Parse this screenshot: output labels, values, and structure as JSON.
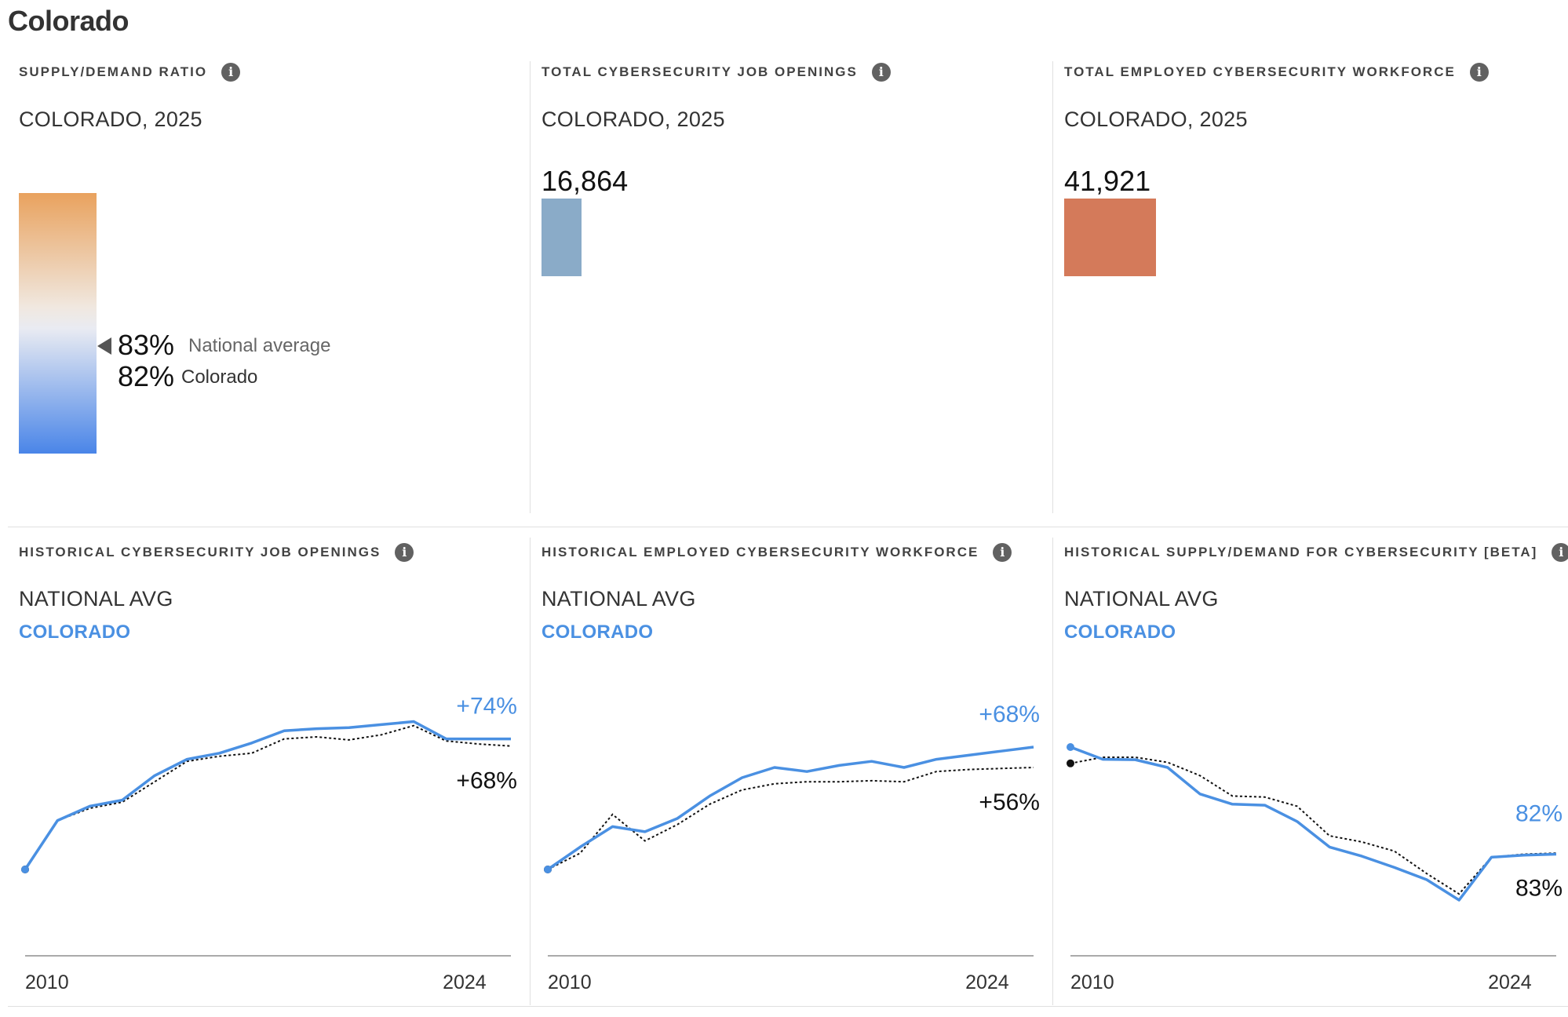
{
  "page": {
    "title": "Colorado"
  },
  "top": {
    "ratio": {
      "title": "SUPPLY/DEMAND RATIO",
      "subtitle": "COLORADO, 2025",
      "national_value": "83%",
      "national_label": "National average",
      "state_value": "82%",
      "state_label": "Colorado",
      "gradient_colors": [
        "#e9a25e",
        "#eeeeee",
        "#4a85e8"
      ]
    },
    "openings": {
      "title": "TOTAL CYBERSECURITY JOB OPENINGS",
      "subtitle": "COLORADO, 2025",
      "value": "16,864",
      "bar_color": "#8aabc8"
    },
    "workforce": {
      "title": "TOTAL EMPLOYED CYBERSECURITY WORKFORCE",
      "subtitle": "COLORADO, 2025",
      "value": "41,921",
      "bar_color": "#d47a5a"
    }
  },
  "bottom": {
    "legend_national": "NATIONAL AVG",
    "legend_state": "COLORADO",
    "colors": {
      "state": "#4a90e2",
      "national": "#111111"
    }
  },
  "chart_data": [
    {
      "type": "line",
      "title": "HISTORICAL CYBERSECURITY JOB OPENINGS",
      "x_tick_labels": [
        "2010",
        "2024"
      ],
      "x": [
        2010,
        2011,
        2012,
        2013,
        2014,
        2015,
        2016,
        2017,
        2018,
        2019,
        2020,
        2021,
        2022,
        2023,
        2024,
        2025
      ],
      "ylim": [
        0,
        80
      ],
      "series": [
        {
          "name": "COLORADO",
          "style": "solid",
          "end_label": "+74%",
          "values": [
            0,
            24,
            31,
            34,
            46,
            54,
            57,
            62,
            68,
            69,
            69.5,
            71,
            72.5,
            64,
            64,
            64
          ]
        },
        {
          "name": "NATIONAL AVG",
          "style": "dotted",
          "end_label": "+68%",
          "values": [
            0,
            24,
            30,
            33,
            43,
            53,
            55.5,
            57,
            64,
            65,
            63.5,
            66,
            70.5,
            63,
            61.5,
            60.5
          ]
        }
      ]
    },
    {
      "type": "line",
      "title": "HISTORICAL EMPLOYED CYBERSECURITY WORKFORCE",
      "x_tick_labels": [
        "2010",
        "2024"
      ],
      "x": [
        2010,
        2011,
        2012,
        2013,
        2014,
        2015,
        2016,
        2017,
        2018,
        2019,
        2020,
        2021,
        2022,
        2023,
        2024,
        2025
      ],
      "ylim": [
        0,
        80
      ],
      "series": [
        {
          "name": "COLORADO",
          "style": "solid",
          "end_label": "+68%",
          "values": [
            0,
            11,
            21,
            18.5,
            25,
            36,
            45,
            50,
            48,
            51,
            53,
            50,
            54,
            56,
            58,
            60
          ]
        },
        {
          "name": "NATIONAL AVG",
          "style": "dotted",
          "end_label": "+56%",
          "values": [
            0,
            8,
            27,
            14,
            22,
            32,
            39,
            42,
            43,
            43,
            43.5,
            43,
            48,
            49,
            49.5,
            50
          ]
        }
      ]
    },
    {
      "type": "line",
      "title": "HISTORICAL SUPPLY/DEMAND FOR CYBERSECURITY [BETA]",
      "x_tick_labels": [
        "2010",
        "2024"
      ],
      "x": [
        2010,
        2011,
        2012,
        2013,
        2014,
        2015,
        2016,
        2017,
        2018,
        2019,
        2020,
        2021,
        2022,
        2023,
        2024,
        2025
      ],
      "ylim": [
        0,
        80
      ],
      "series": [
        {
          "name": "COLORADO",
          "style": "solid",
          "end_label": "82%",
          "values": [
            60,
            54,
            53.8,
            50,
            37,
            32,
            31.5,
            23.5,
            11,
            6.5,
            1,
            -5,
            -15,
            6,
            7,
            7.5
          ]
        },
        {
          "name": "NATIONAL AVG",
          "style": "dotted",
          "end_label": "83%",
          "values": [
            52,
            55,
            55,
            52.5,
            46,
            36,
            35.5,
            31,
            16.5,
            13.5,
            9,
            -2,
            -12,
            6,
            7.5,
            8
          ]
        }
      ]
    }
  ]
}
